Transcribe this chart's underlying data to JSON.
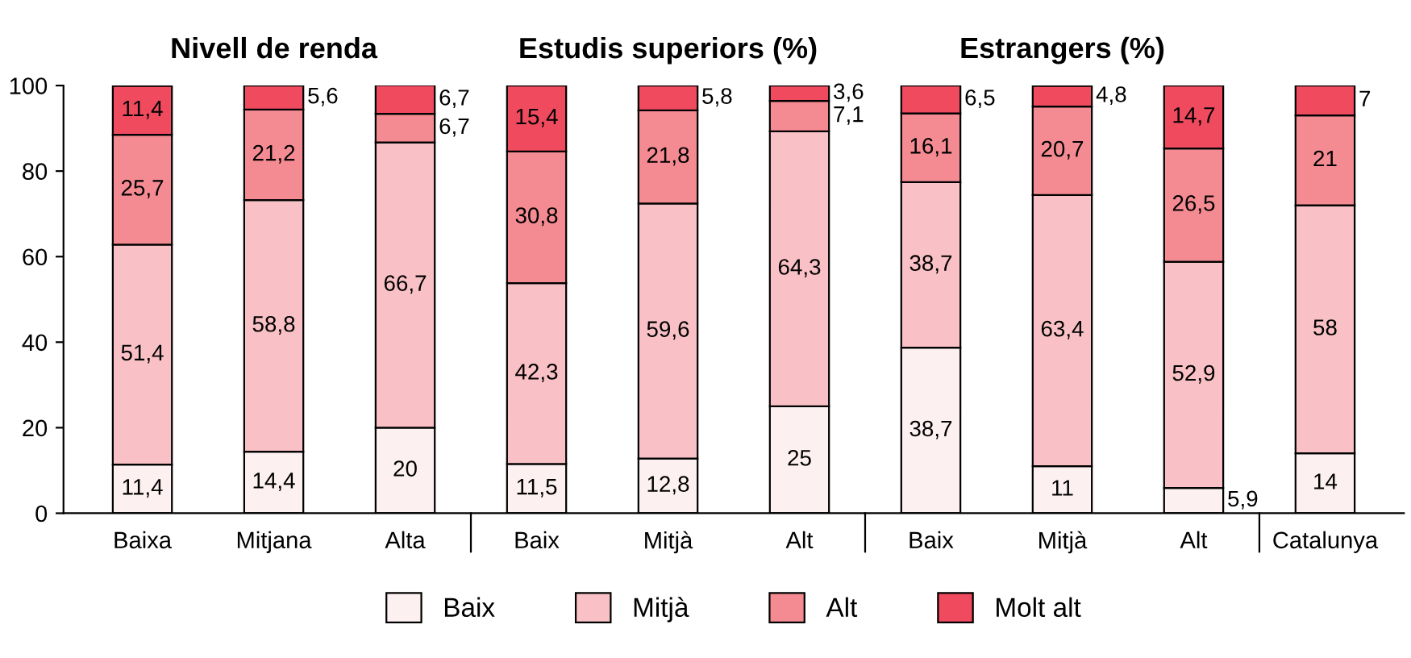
{
  "chart_data": {
    "type": "bar",
    "stacked": true,
    "legend": "bottom",
    "grid": false,
    "annotations": [
      "Nivell de renda",
      "Estudis superiors (%)",
      "Estrangers (%)"
    ],
    "categories": [
      "Baixa",
      "Mitjana",
      "Alta",
      "Baix",
      "Mitjà",
      "Alt",
      "Baix",
      "Mitjà",
      "Alt",
      "Catalunya"
    ],
    "ylim": [
      0,
      100
    ],
    "yticks": [
      0,
      20,
      40,
      60,
      80,
      100
    ],
    "series": [
      {
        "name": "Baix",
        "color": "#fdf0f1",
        "values": [
          11.4,
          14.4,
          20,
          11.5,
          12.8,
          25,
          38.7,
          11,
          5.9,
          14
        ],
        "value_labels": [
          "11,4",
          "14,4",
          "20",
          "11,5",
          "12,8",
          "25",
          "38,7",
          "11",
          "5,9",
          "14"
        ]
      },
      {
        "name": "Mitjà",
        "color": "#f9c1c5",
        "values": [
          51.4,
          58.8,
          66.7,
          42.3,
          59.6,
          64.3,
          38.7,
          63.4,
          52.9,
          58
        ],
        "value_labels": [
          "51,4",
          "58,8",
          "66,7",
          "42,3",
          "59,6",
          "64,3",
          "38,7",
          "63,4",
          "52,9",
          "58"
        ]
      },
      {
        "name": "Alt",
        "color": "#f58b92",
        "values": [
          25.7,
          21.2,
          6.7,
          30.8,
          21.8,
          7.1,
          16.1,
          20.7,
          26.5,
          21
        ],
        "value_labels": [
          "25,7",
          "21,2",
          "6,7",
          "30,8",
          "21,8",
          "7,1",
          "16,1",
          "20,7",
          "26,5",
          "21"
        ]
      },
      {
        "name": "Molt alt",
        "color": "#ef4a5e",
        "values": [
          11.4,
          5.6,
          6.7,
          15.4,
          5.8,
          3.6,
          6.5,
          4.8,
          14.7,
          7
        ],
        "value_labels": [
          "11,4",
          "5,6",
          "6,7",
          "15,4",
          "5,8",
          "3,6",
          "6,5",
          "4,8",
          "14,7",
          "7"
        ]
      }
    ]
  }
}
